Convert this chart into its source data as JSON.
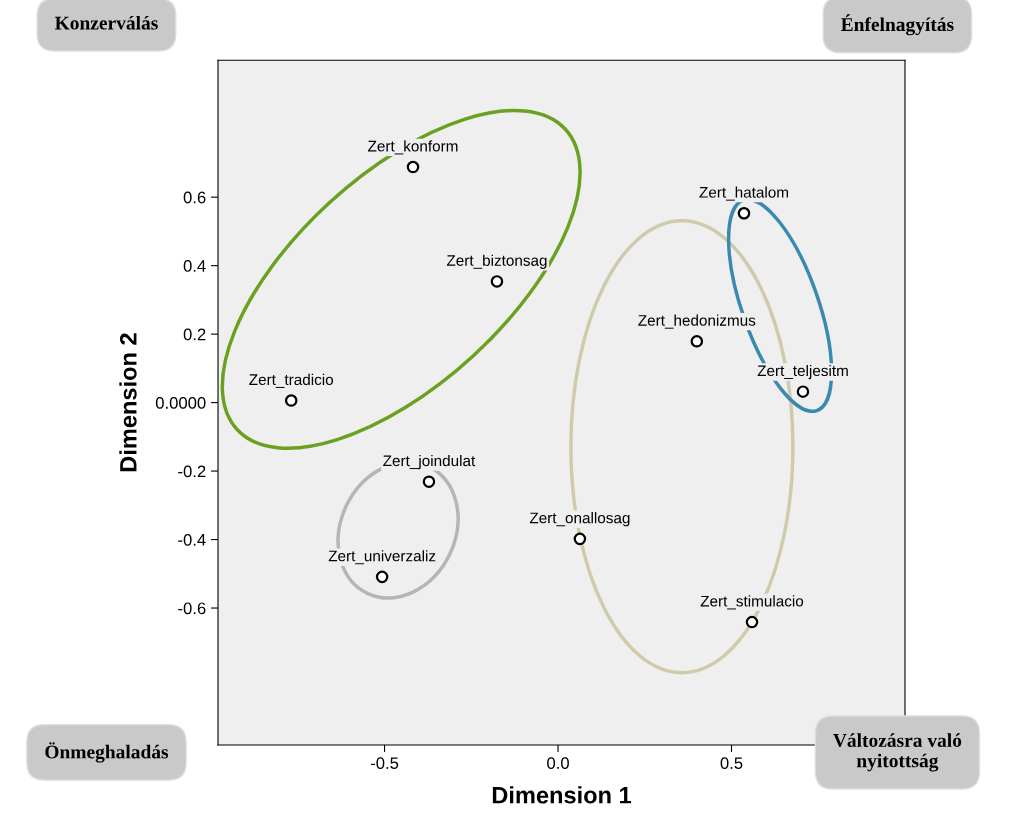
{
  "chart_data": {
    "type": "scatter",
    "xlabel": "Dimension 1",
    "ylabel": "Dimension 2",
    "series": [
      {
        "color": "#000000",
        "x": [
          -0.418,
          -0.176,
          -0.769,
          0.536,
          0.4,
          0.706,
          -0.372,
          0.063,
          -0.507,
          0.559
        ],
        "values": [
          0.688,
          0.354,
          0.006,
          0.553,
          0.179,
          0.032,
          -0.231,
          -0.398,
          -0.509,
          -0.641
        ]
      }
    ],
    "marker": "circle",
    "grid": false,
    "legend": false,
    "xlim": [
      -0.98,
      1.0
    ],
    "ylim": [
      -1.0,
      1.0
    ],
    "xticks": [
      {
        "value": -0.5,
        "label": "-0.5"
      },
      {
        "value": 0,
        "label": "0.0"
      },
      {
        "value": 0.5,
        "label": "0.5"
      }
    ],
    "yticks": [
      {
        "value": -0.6,
        "label": "-0.6"
      },
      {
        "value": -0.4,
        "label": "-0.4"
      },
      {
        "value": -0.2,
        "label": "-0.2"
      },
      {
        "value": 0,
        "label": "0.0000"
      },
      {
        "value": 0.2,
        "label": "0.2"
      },
      {
        "value": 0.4,
        "label": "0.4"
      },
      {
        "value": 0.6,
        "label": "0.6"
      }
    ],
    "annotations": [
      {
        "text": "Zert_konform",
        "x": -0.418,
        "y": 0.688
      },
      {
        "text": "Zert_biztonsag",
        "x": -0.176,
        "y": 0.354
      },
      {
        "text": "Zert_tradicio",
        "x": -0.769,
        "y": 0.006
      },
      {
        "text": "Zert_hatalom",
        "x": 0.536,
        "y": 0.553
      },
      {
        "text": "Zert_hedonizmus",
        "x": 0.4,
        "y": 0.179
      },
      {
        "text": "Zert_teljesitm",
        "x": 0.706,
        "y": 0.032
      },
      {
        "text": "Zert_joindulat",
        "x": -0.372,
        "y": -0.231
      },
      {
        "text": "Zert_onallosag",
        "x": 0.063,
        "y": -0.398
      },
      {
        "text": "Zert_univerzaliz",
        "x": -0.507,
        "y": -0.509
      },
      {
        "text": "Zert_stimulacio",
        "x": 0.559,
        "y": -0.641
      },
      "Konzerválás",
      "Énfelnagyítás",
      "Önmeghaladás",
      "Változásra való\nnyitottság"
    ]
  }
}
